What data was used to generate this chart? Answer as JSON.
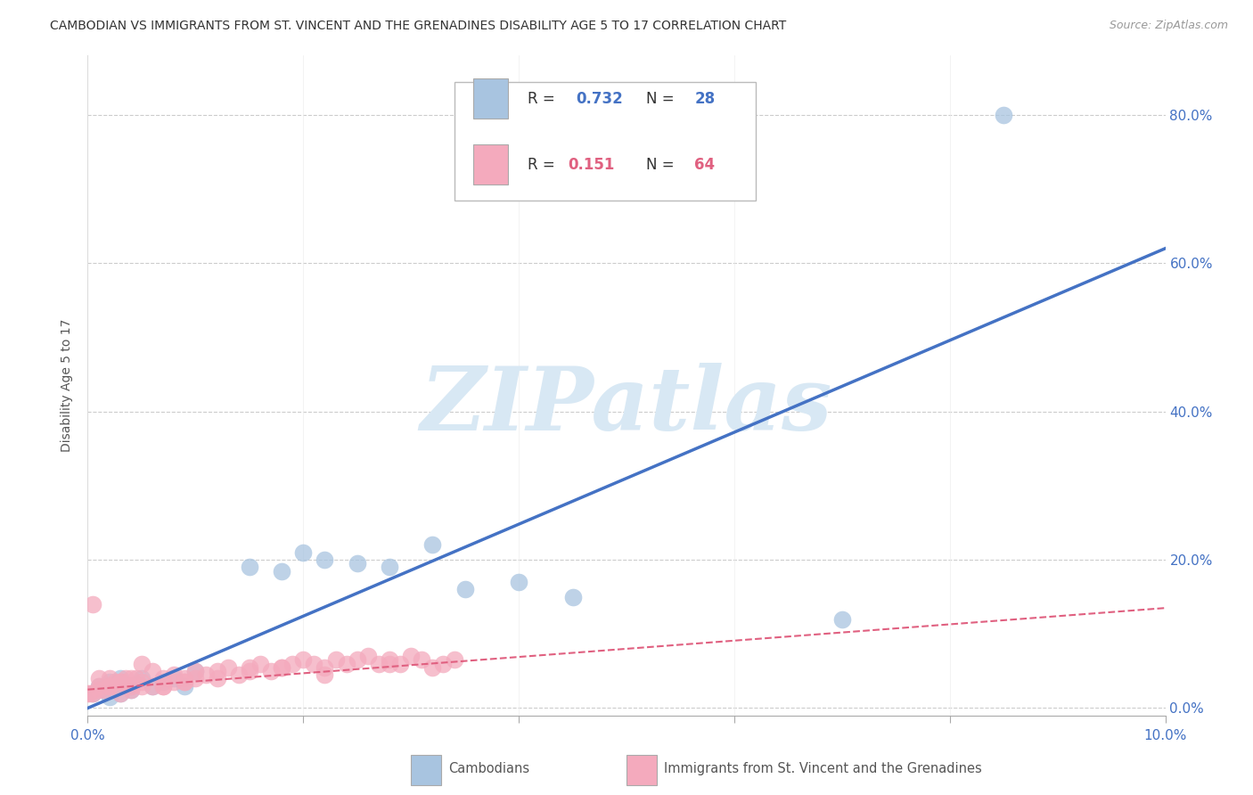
{
  "title": "CAMBODIAN VS IMMIGRANTS FROM ST. VINCENT AND THE GRENADINES DISABILITY AGE 5 TO 17 CORRELATION CHART",
  "source": "Source: ZipAtlas.com",
  "ylabel": "Disability Age 5 to 17",
  "watermark": "ZIPatlas",
  "R_cambodian": 0.732,
  "N_cambodian": 28,
  "R_vincent": 0.151,
  "N_vincent": 64,
  "blue_scatter_color": "#A8C4E0",
  "pink_scatter_color": "#F4AABD",
  "blue_line_color": "#4472C4",
  "pink_line_color": "#E06080",
  "title_fontsize": 10,
  "source_fontsize": 9,
  "axis_label_fontsize": 10,
  "tick_fontsize": 11,
  "legend_fontsize": 12,
  "watermark_color": "#D8E8F4",
  "grid_color": "#CCCCCC",
  "xlim": [
    0.0,
    0.1
  ],
  "ylim": [
    -0.01,
    0.88
  ],
  "yticks": [
    0.0,
    0.2,
    0.4,
    0.6,
    0.8
  ],
  "xticks": [
    0.0,
    0.1
  ],
  "camb_x": [
    0.0005,
    0.001,
    0.0015,
    0.002,
    0.002,
    0.0025,
    0.003,
    0.003,
    0.004,
    0.004,
    0.005,
    0.006,
    0.007,
    0.008,
    0.009,
    0.01,
    0.015,
    0.018,
    0.02,
    0.022,
    0.025,
    0.028,
    0.032,
    0.035,
    0.04,
    0.045,
    0.07,
    0.085
  ],
  "camb_y": [
    0.02,
    0.03,
    0.025,
    0.015,
    0.035,
    0.03,
    0.02,
    0.04,
    0.03,
    0.025,
    0.04,
    0.03,
    0.035,
    0.04,
    0.03,
    0.05,
    0.19,
    0.185,
    0.21,
    0.2,
    0.195,
    0.19,
    0.22,
    0.16,
    0.17,
    0.15,
    0.12,
    0.8
  ],
  "vinc_x": [
    0.0002,
    0.0005,
    0.001,
    0.001,
    0.0015,
    0.002,
    0.002,
    0.0025,
    0.003,
    0.003,
    0.0035,
    0.004,
    0.004,
    0.0045,
    0.005,
    0.005,
    0.006,
    0.006,
    0.007,
    0.007,
    0.008,
    0.008,
    0.009,
    0.009,
    0.01,
    0.01,
    0.011,
    0.012,
    0.013,
    0.014,
    0.015,
    0.016,
    0.017,
    0.018,
    0.019,
    0.02,
    0.021,
    0.022,
    0.023,
    0.024,
    0.025,
    0.026,
    0.027,
    0.028,
    0.029,
    0.03,
    0.031,
    0.032,
    0.033,
    0.034,
    0.0,
    0.0005,
    0.001,
    0.002,
    0.003,
    0.004,
    0.005,
    0.007,
    0.009,
    0.012,
    0.015,
    0.018,
    0.022,
    0.028
  ],
  "vinc_y": [
    0.02,
    0.02,
    0.04,
    0.03,
    0.025,
    0.03,
    0.04,
    0.035,
    0.02,
    0.035,
    0.04,
    0.03,
    0.025,
    0.04,
    0.035,
    0.06,
    0.03,
    0.05,
    0.04,
    0.03,
    0.035,
    0.045,
    0.04,
    0.035,
    0.04,
    0.05,
    0.045,
    0.05,
    0.055,
    0.045,
    0.055,
    0.06,
    0.05,
    0.055,
    0.06,
    0.065,
    0.06,
    0.055,
    0.065,
    0.06,
    0.065,
    0.07,
    0.06,
    0.065,
    0.06,
    0.07,
    0.065,
    0.055,
    0.06,
    0.065,
    0.02,
    0.14,
    0.025,
    0.03,
    0.035,
    0.04,
    0.03,
    0.03,
    0.035,
    0.04,
    0.05,
    0.055,
    0.045,
    0.06
  ],
  "camb_trend_x": [
    0.0,
    0.1
  ],
  "camb_trend_y": [
    0.0,
    0.62
  ],
  "vinc_trend_x": [
    0.0,
    0.1
  ],
  "vinc_trend_y": [
    0.025,
    0.135
  ]
}
